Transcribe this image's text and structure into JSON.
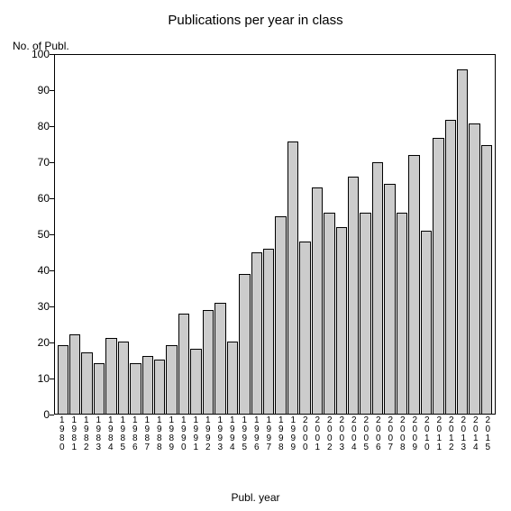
{
  "chart": {
    "type": "bar",
    "title": "Publications per year in class",
    "title_fontsize": 15,
    "y_axis_label": "No. of Publ.",
    "x_axis_label": "Publ. year",
    "label_fontsize": 12,
    "tick_fontsize": 12,
    "background_color": "#ffffff",
    "border_color": "#000000",
    "bar_fill": "#cccccc",
    "bar_stroke": "#000000",
    "ylim": [
      0,
      100
    ],
    "ytick_step": 10,
    "yticks": [
      0,
      10,
      20,
      30,
      40,
      50,
      60,
      70,
      80,
      90,
      100
    ],
    "categories": [
      "1980",
      "1981",
      "1982",
      "1983",
      "1984",
      "1985",
      "1986",
      "1987",
      "1988",
      "1989",
      "1990",
      "1991",
      "1992",
      "1993",
      "1994",
      "1995",
      "1996",
      "1997",
      "1998",
      "1999",
      "2000",
      "2001",
      "2002",
      "2003",
      "2004",
      "2005",
      "2006",
      "2007",
      "2008",
      "2009",
      "2010",
      "2011",
      "2012",
      "2013",
      "2014",
      "2015"
    ],
    "values": [
      19,
      22,
      17,
      14,
      21,
      20,
      14,
      16,
      15,
      19,
      28,
      18,
      29,
      31,
      20,
      39,
      45,
      46,
      55,
      76,
      48,
      63,
      56,
      52,
      66,
      56,
      70,
      64,
      56,
      72,
      51,
      77,
      82,
      96,
      81,
      75
    ]
  }
}
